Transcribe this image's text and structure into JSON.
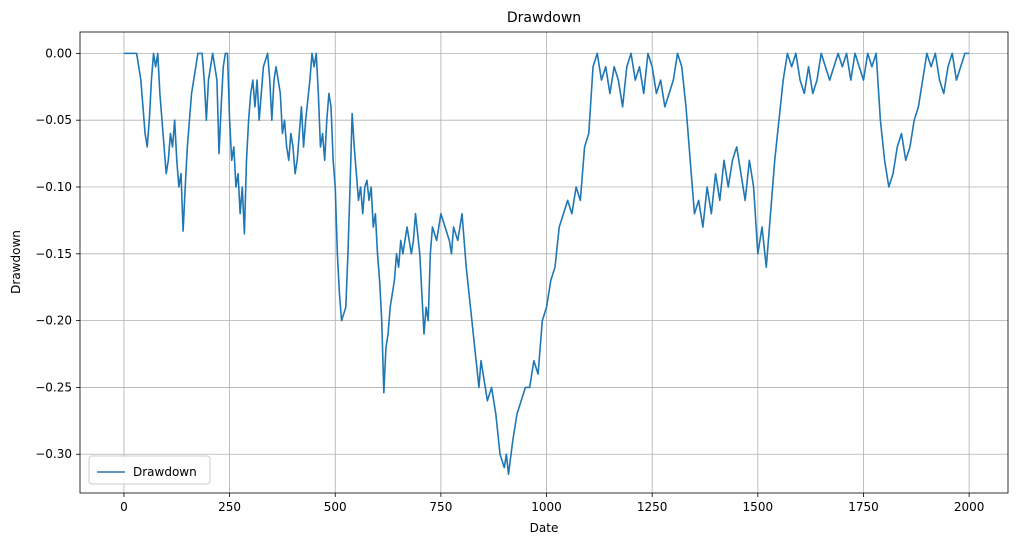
{
  "chart_data": {
    "type": "line",
    "title": "Drawdown",
    "x_label": "Date",
    "y_label": "Drawdown",
    "x": [
      0,
      20,
      30,
      40,
      45,
      50,
      55,
      60,
      65,
      70,
      75,
      80,
      85,
      90,
      95,
      100,
      105,
      110,
      115,
      120,
      125,
      130,
      135,
      140,
      145,
      150,
      155,
      160,
      165,
      170,
      175,
      185,
      190,
      195,
      200,
      205,
      210,
      220,
      225,
      230,
      235,
      240,
      245,
      250,
      255,
      260,
      265,
      270,
      275,
      280,
      285,
      290,
      295,
      300,
      305,
      310,
      315,
      320,
      325,
      330,
      340,
      345,
      350,
      355,
      360,
      370,
      375,
      380,
      385,
      390,
      395,
      400,
      405,
      410,
      415,
      420,
      425,
      430,
      440,
      445,
      450,
      455,
      460,
      465,
      470,
      475,
      480,
      485,
      490,
      495,
      500,
      505,
      510,
      515,
      520,
      525,
      530,
      535,
      540,
      545,
      550,
      555,
      560,
      565,
      570,
      575,
      580,
      585,
      590,
      595,
      600,
      605,
      610,
      615,
      620,
      625,
      630,
      640,
      645,
      650,
      655,
      660,
      670,
      680,
      685,
      690,
      700,
      705,
      710,
      715,
      720,
      725,
      730,
      740,
      750,
      760,
      770,
      775,
      780,
      790,
      800,
      810,
      820,
      830,
      840,
      845,
      850,
      860,
      870,
      880,
      890,
      900,
      905,
      910,
      920,
      930,
      940,
      950,
      960,
      970,
      980,
      990,
      1000,
      1010,
      1020,
      1030,
      1040,
      1050,
      1060,
      1070,
      1080,
      1090,
      1100,
      1110,
      1120,
      1130,
      1140,
      1150,
      1160,
      1170,
      1180,
      1190,
      1200,
      1210,
      1220,
      1230,
      1240,
      1250,
      1260,
      1270,
      1280,
      1290,
      1300,
      1310,
      1320,
      1330,
      1340,
      1350,
      1360,
      1370,
      1380,
      1390,
      1400,
      1410,
      1420,
      1430,
      1440,
      1450,
      1460,
      1470,
      1480,
      1490,
      1500,
      1510,
      1520,
      1530,
      1540,
      1550,
      1560,
      1570,
      1580,
      1590,
      1600,
      1610,
      1620,
      1630,
      1640,
      1650,
      1660,
      1670,
      1680,
      1690,
      1700,
      1710,
      1720,
      1730,
      1740,
      1750,
      1760,
      1770,
      1780,
      1790,
      1800,
      1810,
      1820,
      1830,
      1840,
      1850,
      1860,
      1870,
      1880,
      1890,
      1900,
      1910,
      1920,
      1930,
      1940,
      1950,
      1960,
      1970,
      1980,
      1990,
      2000
    ],
    "series": [
      {
        "name": "Drawdown",
        "color": "#1f77b4",
        "values": [
          0,
          0,
          0,
          -0.02,
          -0.04,
          -0.06,
          -0.07,
          -0.05,
          -0.02,
          0,
          -0.01,
          0,
          -0.03,
          -0.05,
          -0.07,
          -0.09,
          -0.08,
          -0.06,
          -0.07,
          -0.05,
          -0.08,
          -0.1,
          -0.09,
          -0.133,
          -0.1,
          -0.07,
          -0.05,
          -0.03,
          -0.02,
          -0.01,
          0,
          0,
          -0.02,
          -0.05,
          -0.02,
          -0.01,
          0,
          -0.02,
          -0.075,
          -0.04,
          -0.01,
          0,
          0,
          -0.05,
          -0.08,
          -0.07,
          -0.1,
          -0.09,
          -0.12,
          -0.1,
          -0.135,
          -0.08,
          -0.05,
          -0.03,
          -0.02,
          -0.04,
          -0.02,
          -0.05,
          -0.03,
          -0.01,
          0,
          -0.02,
          -0.05,
          -0.02,
          -0.01,
          -0.03,
          -0.06,
          -0.05,
          -0.07,
          -0.08,
          -0.06,
          -0.07,
          -0.09,
          -0.08,
          -0.06,
          -0.04,
          -0.07,
          -0.05,
          -0.02,
          0,
          -0.01,
          0,
          -0.03,
          -0.07,
          -0.06,
          -0.08,
          -0.05,
          -0.03,
          -0.04,
          -0.08,
          -0.1,
          -0.15,
          -0.18,
          -0.2,
          -0.195,
          -0.19,
          -0.15,
          -0.1,
          -0.045,
          -0.07,
          -0.09,
          -0.11,
          -0.1,
          -0.12,
          -0.1,
          -0.095,
          -0.11,
          -0.1,
          -0.13,
          -0.12,
          -0.15,
          -0.17,
          -0.2,
          -0.254,
          -0.22,
          -0.21,
          -0.19,
          -0.17,
          -0.15,
          -0.16,
          -0.14,
          -0.15,
          -0.13,
          -0.15,
          -0.14,
          -0.12,
          -0.15,
          -0.18,
          -0.21,
          -0.19,
          -0.2,
          -0.15,
          -0.13,
          -0.14,
          -0.12,
          -0.13,
          -0.14,
          -0.15,
          -0.13,
          -0.14,
          -0.12,
          -0.16,
          -0.19,
          -0.22,
          -0.25,
          -0.23,
          -0.24,
          -0.26,
          -0.25,
          -0.27,
          -0.3,
          -0.31,
          -0.3,
          -0.315,
          -0.29,
          -0.27,
          -0.26,
          -0.25,
          -0.25,
          -0.23,
          -0.24,
          -0.2,
          -0.19,
          -0.17,
          -0.16,
          -0.13,
          -0.12,
          -0.11,
          -0.12,
          -0.1,
          -0.11,
          -0.07,
          -0.06,
          -0.01,
          0,
          -0.02,
          -0.01,
          -0.03,
          -0.01,
          -0.02,
          -0.04,
          -0.01,
          0,
          -0.02,
          -0.01,
          -0.03,
          0,
          -0.01,
          -0.03,
          -0.02,
          -0.04,
          -0.03,
          -0.02,
          0,
          -0.01,
          -0.04,
          -0.08,
          -0.12,
          -0.11,
          -0.13,
          -0.1,
          -0.12,
          -0.09,
          -0.11,
          -0.08,
          -0.1,
          -0.08,
          -0.07,
          -0.09,
          -0.11,
          -0.08,
          -0.1,
          -0.15,
          -0.13,
          -0.16,
          -0.12,
          -0.08,
          -0.05,
          -0.02,
          0,
          -0.01,
          0,
          -0.02,
          -0.03,
          -0.01,
          -0.03,
          -0.02,
          0,
          -0.01,
          -0.02,
          -0.01,
          0,
          -0.01,
          0,
          -0.02,
          0,
          -0.01,
          -0.02,
          0,
          -0.01,
          0,
          -0.05,
          -0.08,
          -0.1,
          -0.09,
          -0.07,
          -0.06,
          -0.08,
          -0.07,
          -0.05,
          -0.04,
          -0.02,
          0,
          -0.01,
          0,
          -0.02,
          -0.03,
          -0.01,
          0,
          -0.02,
          -0.01,
          0,
          0
        ]
      }
    ],
    "xlim": [
      -104,
      2092
    ],
    "xticks": [
      0,
      250,
      500,
      750,
      1000,
      1250,
      1500,
      1750,
      2000
    ],
    "ylim": [
      -0.329,
      0.016
    ],
    "yticks": [
      {
        "value": 0,
        "label": "0.00"
      },
      {
        "value": -0.05,
        "label": "−0.05"
      },
      {
        "value": -0.1,
        "label": "−0.10"
      },
      {
        "value": -0.15,
        "label": "−0.15"
      },
      {
        "value": -0.2,
        "label": "−0.20"
      },
      {
        "value": -0.25,
        "label": "−0.25"
      },
      {
        "value": -0.3,
        "label": "−0.30"
      }
    ],
    "grid": true,
    "legend": "lower left"
  }
}
